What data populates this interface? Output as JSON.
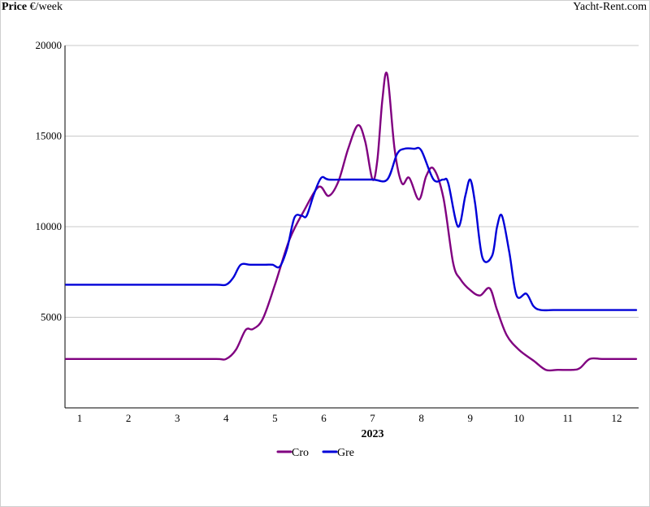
{
  "header": {
    "ylabel_bold": "Price",
    "ylabel_rest": " €/week",
    "brand": "Yacht-Rent.com"
  },
  "chart_data": {
    "type": "line",
    "xlabel": "2023",
    "x_ticks": [
      "1",
      "2",
      "3",
      "4",
      "5",
      "6",
      "7",
      "8",
      "9",
      "10",
      "11",
      "12"
    ],
    "y_ticks": [
      5000,
      10000,
      15000,
      20000
    ],
    "ylim": [
      0,
      20000
    ],
    "xlim": [
      0.7,
      12.45
    ],
    "grid": true,
    "legend_position": "bottom-center",
    "series": [
      {
        "name": "Cro",
        "color": "#800080",
        "points": [
          [
            0.72,
            2700
          ],
          [
            1,
            2700
          ],
          [
            2,
            2700
          ],
          [
            3,
            2700
          ],
          [
            3.8,
            2700
          ],
          [
            4.0,
            2700
          ],
          [
            4.2,
            3200
          ],
          [
            4.4,
            4300
          ],
          [
            4.55,
            4350
          ],
          [
            4.75,
            4900
          ],
          [
            5.0,
            6800
          ],
          [
            5.3,
            9300
          ],
          [
            5.6,
            10900
          ],
          [
            5.9,
            12200
          ],
          [
            6.1,
            11700
          ],
          [
            6.3,
            12500
          ],
          [
            6.5,
            14300
          ],
          [
            6.7,
            15600
          ],
          [
            6.85,
            14700
          ],
          [
            7.0,
            12600
          ],
          [
            7.1,
            13700
          ],
          [
            7.2,
            17000
          ],
          [
            7.3,
            18400
          ],
          [
            7.45,
            14300
          ],
          [
            7.6,
            12400
          ],
          [
            7.75,
            12700
          ],
          [
            7.95,
            11500
          ],
          [
            8.1,
            12800
          ],
          [
            8.25,
            13200
          ],
          [
            8.45,
            11600
          ],
          [
            8.65,
            8000
          ],
          [
            8.8,
            7100
          ],
          [
            9.0,
            6500
          ],
          [
            9.2,
            6200
          ],
          [
            9.4,
            6600
          ],
          [
            9.55,
            5400
          ],
          [
            9.75,
            4000
          ],
          [
            10.0,
            3200
          ],
          [
            10.3,
            2600
          ],
          [
            10.55,
            2100
          ],
          [
            10.8,
            2100
          ],
          [
            11.1,
            2100
          ],
          [
            11.25,
            2200
          ],
          [
            11.45,
            2700
          ],
          [
            11.7,
            2700
          ],
          [
            12.0,
            2700
          ],
          [
            12.4,
            2700
          ]
        ]
      },
      {
        "name": "Gre",
        "color": "#0000d8",
        "points": [
          [
            0.72,
            6800
          ],
          [
            1,
            6800
          ],
          [
            2,
            6800
          ],
          [
            3,
            6800
          ],
          [
            3.8,
            6800
          ],
          [
            4.0,
            6800
          ],
          [
            4.15,
            7200
          ],
          [
            4.3,
            7900
          ],
          [
            4.5,
            7900
          ],
          [
            4.8,
            7900
          ],
          [
            4.95,
            7900
          ],
          [
            5.1,
            7800
          ],
          [
            5.25,
            8800
          ],
          [
            5.4,
            10500
          ],
          [
            5.55,
            10600
          ],
          [
            5.65,
            10600
          ],
          [
            5.8,
            11800
          ],
          [
            5.95,
            12700
          ],
          [
            6.1,
            12600
          ],
          [
            6.5,
            12600
          ],
          [
            7.0,
            12600
          ],
          [
            7.3,
            12600
          ],
          [
            7.5,
            14000
          ],
          [
            7.65,
            14300
          ],
          [
            7.85,
            14300
          ],
          [
            8.0,
            14200
          ],
          [
            8.25,
            12600
          ],
          [
            8.45,
            12600
          ],
          [
            8.55,
            12400
          ],
          [
            8.75,
            10000
          ],
          [
            8.9,
            11700
          ],
          [
            9.0,
            12600
          ],
          [
            9.1,
            11300
          ],
          [
            9.25,
            8300
          ],
          [
            9.45,
            8400
          ],
          [
            9.55,
            10000
          ],
          [
            9.65,
            10600
          ],
          [
            9.8,
            8600
          ],
          [
            9.95,
            6200
          ],
          [
            10.15,
            6300
          ],
          [
            10.3,
            5600
          ],
          [
            10.45,
            5400
          ],
          [
            10.7,
            5400
          ],
          [
            11.0,
            5400
          ],
          [
            11.5,
            5400
          ],
          [
            12.0,
            5400
          ],
          [
            12.4,
            5400
          ]
        ]
      }
    ]
  }
}
